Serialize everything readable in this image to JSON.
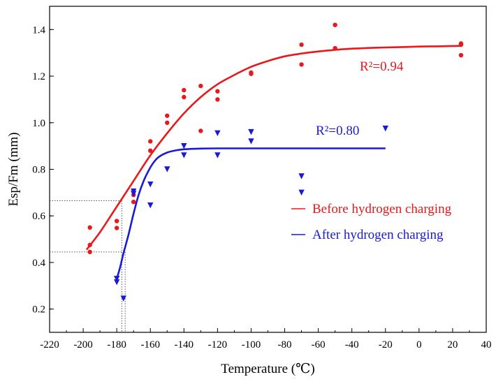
{
  "chart_data": {
    "type": "scatter",
    "title": "",
    "xlabel": "Temperature (℃)",
    "ylabel": "Esp/Fm (mm)",
    "xlim": [
      -220,
      40
    ],
    "ylim": [
      0.1,
      1.5
    ],
    "xticks": [
      -220,
      -200,
      -180,
      -160,
      -140,
      -120,
      -100,
      -80,
      -60,
      -40,
      -20,
      0,
      20,
      40
    ],
    "yticks": [
      0.2,
      0.4,
      0.6,
      0.8,
      1.0,
      1.2,
      1.4
    ],
    "grid": false,
    "legend": "center-right",
    "series": [
      {
        "name": "Before hydrogen charging",
        "color": "#e8181c",
        "marker": "circle",
        "r2_label": "R²=0.94",
        "points": [
          [
            -196,
            0.55
          ],
          [
            -196,
            0.475
          ],
          [
            -196,
            0.445
          ],
          [
            -180,
            0.578
          ],
          [
            -180,
            0.548
          ],
          [
            -170,
            0.66
          ],
          [
            -170,
            0.69
          ],
          [
            -160,
            0.88
          ],
          [
            -160,
            0.92
          ],
          [
            -150,
            1.0
          ],
          [
            -150,
            1.03
          ],
          [
            -140,
            1.11
          ],
          [
            -140,
            1.14
          ],
          [
            -130,
            0.965
          ],
          [
            -130,
            1.158
          ],
          [
            -120,
            1.1
          ],
          [
            -120,
            1.135
          ],
          [
            -100,
            1.21
          ],
          [
            -100,
            1.215
          ],
          [
            -70,
            1.25
          ],
          [
            -70,
            1.335
          ],
          [
            -50,
            1.32
          ],
          [
            -50,
            1.42
          ],
          [
            25,
            1.29
          ],
          [
            25,
            1.335
          ],
          [
            25,
            1.34
          ]
        ],
        "fit": [
          [
            -198,
            0.455
          ],
          [
            -190,
            0.53
          ],
          [
            -180,
            0.64
          ],
          [
            -170,
            0.75
          ],
          [
            -160,
            0.86
          ],
          [
            -150,
            0.955
          ],
          [
            -140,
            1.04
          ],
          [
            -130,
            1.11
          ],
          [
            -120,
            1.165
          ],
          [
            -110,
            1.205
          ],
          [
            -100,
            1.24
          ],
          [
            -90,
            1.265
          ],
          [
            -80,
            1.285
          ],
          [
            -70,
            1.297
          ],
          [
            -60,
            1.306
          ],
          [
            -50,
            1.313
          ],
          [
            -40,
            1.318
          ],
          [
            -30,
            1.321
          ],
          [
            -20,
            1.323
          ],
          [
            -10,
            1.325
          ],
          [
            0,
            1.327
          ],
          [
            10,
            1.328
          ],
          [
            25,
            1.33
          ]
        ]
      },
      {
        "name": "After hydrogen charging",
        "color": "#1a1ad6",
        "marker": "triangle-down",
        "r2_label": "R²=0.80",
        "points": [
          [
            -180,
            0.33
          ],
          [
            -180,
            0.315
          ],
          [
            -176,
            0.245
          ],
          [
            -170,
            0.705
          ],
          [
            -170,
            0.695
          ],
          [
            -160,
            0.735
          ],
          [
            -160,
            0.645
          ],
          [
            -150,
            0.8
          ],
          [
            -140,
            0.9
          ],
          [
            -140,
            0.86
          ],
          [
            -120,
            0.955
          ],
          [
            -120,
            0.86
          ],
          [
            -100,
            0.96
          ],
          [
            -100,
            0.92
          ],
          [
            -70,
            0.77
          ],
          [
            -70,
            0.7
          ],
          [
            -20,
            0.975
          ]
        ],
        "fit": [
          [
            -180,
            0.33
          ],
          [
            -178,
            0.38
          ],
          [
            -176,
            0.44
          ],
          [
            -173,
            0.52
          ],
          [
            -170,
            0.61
          ],
          [
            -167,
            0.69
          ],
          [
            -164,
            0.75
          ],
          [
            -161,
            0.795
          ],
          [
            -158,
            0.83
          ],
          [
            -155,
            0.853
          ],
          [
            -150,
            0.872
          ],
          [
            -145,
            0.881
          ],
          [
            -140,
            0.886
          ],
          [
            -130,
            0.889
          ],
          [
            -120,
            0.89
          ],
          [
            -100,
            0.89
          ],
          [
            -60,
            0.89
          ],
          [
            -20,
            0.89
          ]
        ]
      }
    ],
    "reference_lines": [
      {
        "y": 0.665,
        "x_intersect": -177
      },
      {
        "y": 0.445,
        "x_intersect": -175
      }
    ]
  }
}
